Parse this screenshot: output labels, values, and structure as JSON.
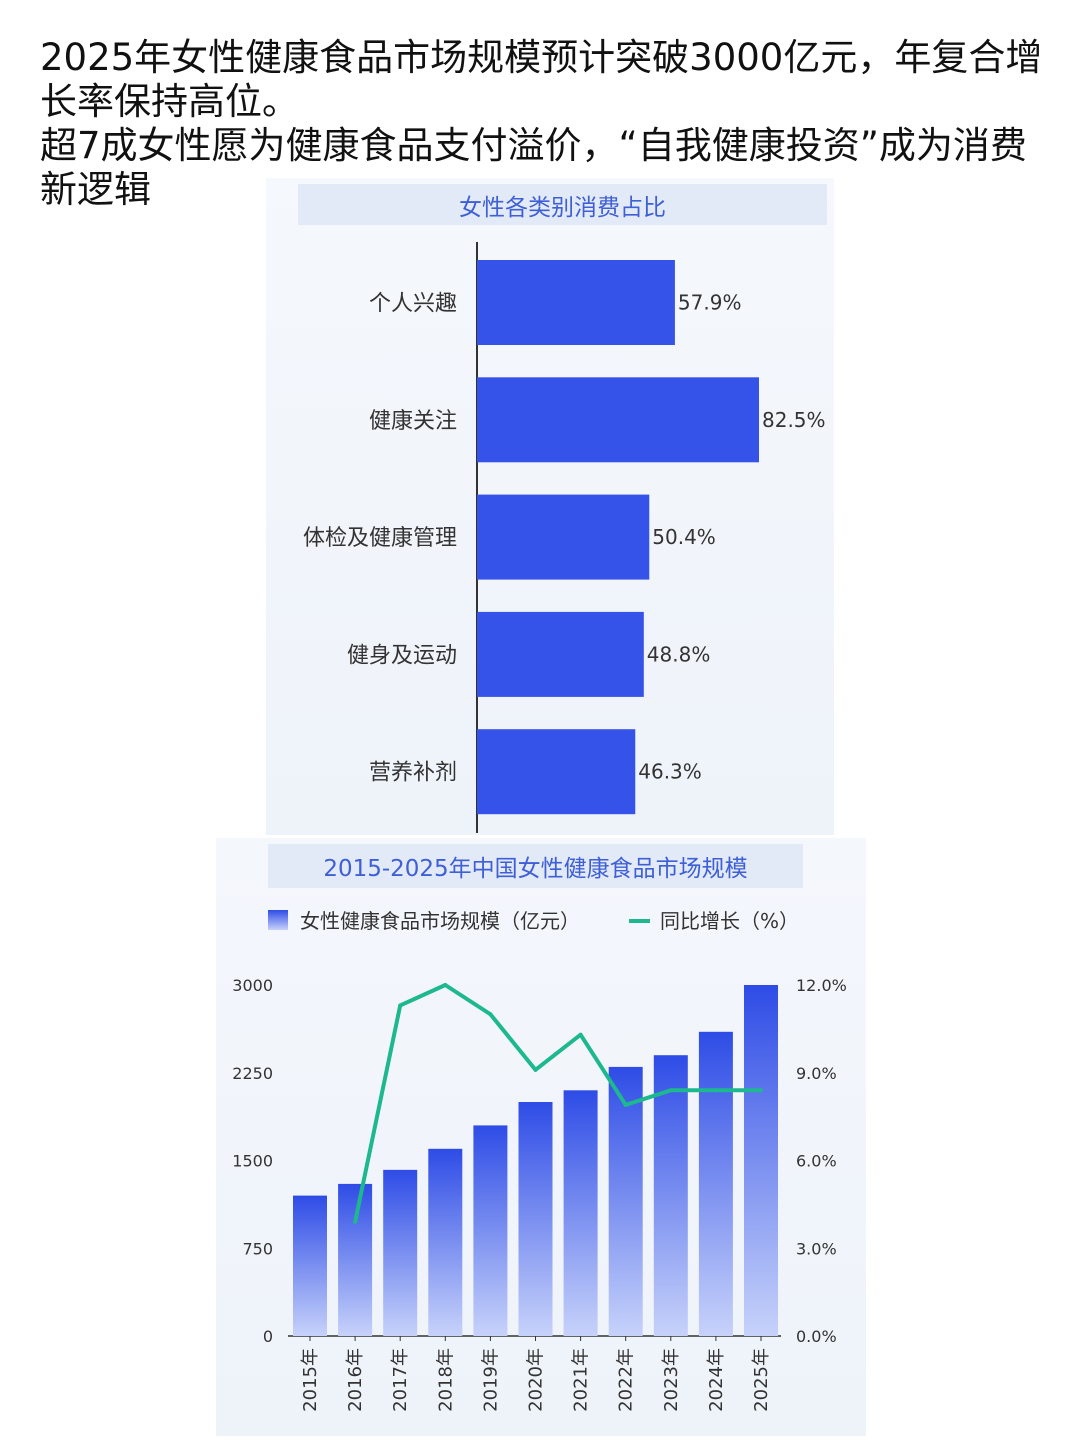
{
  "headline": {
    "line1": "2025年女性健康食品市场规模预计突破3000亿元，年复合增长率保持高位。",
    "line2": "超7成女性愿为健康食品支付溢价，“自我健康投资”成为消费新逻辑"
  },
  "colors": {
    "bar": "#3553e8",
    "line": "#1db88e",
    "title_text": "#3f5fd6",
    "title_bg": "#e2e9f7"
  },
  "chart_data": [
    {
      "type": "bar",
      "orientation": "horizontal",
      "title": "女性各类别消费占比",
      "categories": [
        "个人兴趣",
        "健康关注",
        "体检及健康管理",
        "健身及运动",
        "营养补剂"
      ],
      "values": [
        57.9,
        82.5,
        50.4,
        48.8,
        46.3
      ],
      "value_labels": [
        "57.9%",
        "82.5%",
        "50.4%",
        "48.8%",
        "46.3%"
      ],
      "unit": "%",
      "xlim": [
        0,
        100
      ],
      "grid": false
    },
    {
      "type": "bar+line",
      "title": "2015-2025年中国女性健康食品市场规模",
      "categories": [
        "2015年",
        "2016年",
        "2017年",
        "2018年",
        "2019年",
        "2020年",
        "2021年",
        "2022年",
        "2023年",
        "2024年",
        "2025年"
      ],
      "series": [
        {
          "name": "女性健康食品市场规模（亿元）",
          "type": "bar",
          "axis": "left",
          "values": [
            1200,
            1300,
            1420,
            1600,
            1800,
            2000,
            2100,
            2300,
            2400,
            2600,
            3000
          ]
        },
        {
          "name": "同比增长（%）",
          "type": "line",
          "axis": "right",
          "values": [
            null,
            3.9,
            11.3,
            12.0,
            11.0,
            9.1,
            10.3,
            7.9,
            8.4,
            8.4,
            8.4
          ]
        }
      ],
      "y_left": {
        "ylim": [
          0,
          3000
        ],
        "ticks": [
          "0",
          "750",
          "1500",
          "2250",
          "3000"
        ]
      },
      "y_right": {
        "ylim": [
          0,
          12
        ],
        "ticks": [
          "0.0%",
          "3.0%",
          "6.0%",
          "9.0%",
          "12.0%"
        ]
      },
      "legend_position": "top",
      "grid": false
    }
  ]
}
